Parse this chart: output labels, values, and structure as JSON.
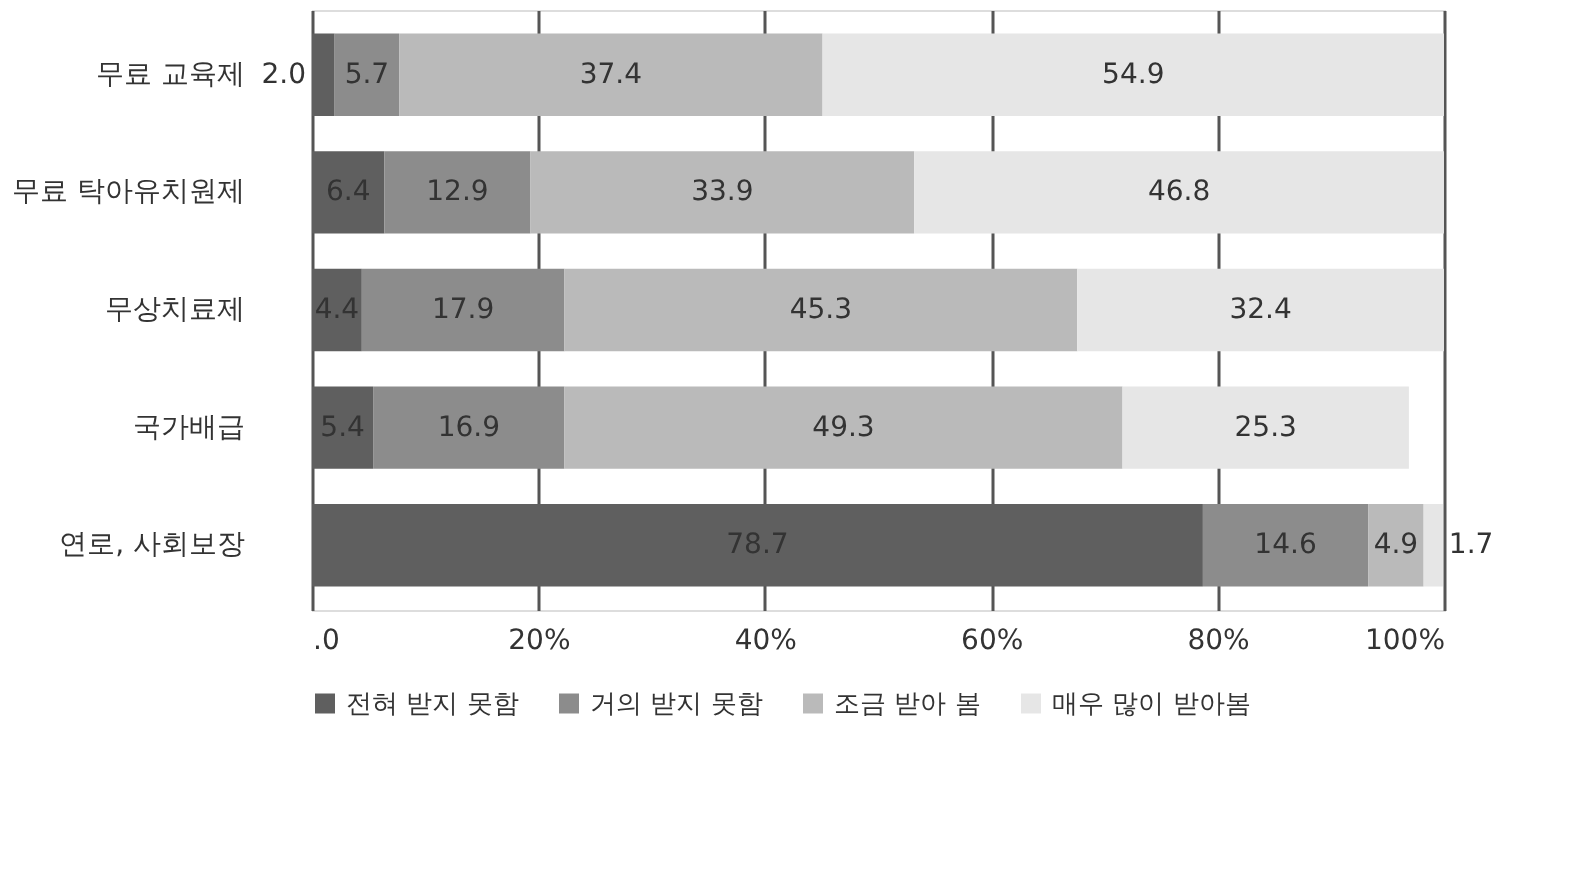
{
  "chart_data": {
    "type": "bar",
    "orientation": "horizontal",
    "stacked": true,
    "grid": "x",
    "legend": "bottom",
    "categories": [
      "무료 교육제",
      "무료 탁아유치원제",
      "무상치료제",
      "국가배급",
      "연로, 사회보장"
    ],
    "series": [
      {
        "name": "전혀 받지 못함",
        "color": "#5f5f5f",
        "values": [
          2.0,
          6.4,
          4.4,
          5.4,
          78.7
        ],
        "value_labels": [
          "2.0",
          "6.4",
          "4.4",
          "5.4",
          "78.7"
        ]
      },
      {
        "name": "거의 받지 못함",
        "color": "#8c8c8c",
        "values": [
          5.7,
          12.9,
          17.9,
          16.9,
          14.6
        ],
        "value_labels": [
          "5.7",
          "12.9",
          "17.9",
          "16.9",
          "14.6"
        ]
      },
      {
        "name": "조금 받아 봄",
        "color": "#bababa",
        "values": [
          37.4,
          33.9,
          45.3,
          49.3,
          4.9
        ],
        "value_labels": [
          "37.4",
          "33.9",
          "45.3",
          "49.3",
          "4.9"
        ]
      },
      {
        "name": "매우 많이 받아봄",
        "color": "#e6e6e6",
        "values": [
          54.9,
          46.8,
          32.4,
          25.3,
          1.7
        ],
        "value_labels": [
          "54.9",
          "46.8",
          "32.4",
          "25.3",
          "1.7"
        ]
      }
    ],
    "xlim": [
      0,
      100
    ],
    "xticks": [
      {
        "value": 0,
        "label": ".0"
      },
      {
        "value": 20,
        "label": "20%"
      },
      {
        "value": 40,
        "label": "40%"
      },
      {
        "value": 60,
        "label": "60%"
      },
      {
        "value": 80,
        "label": "80%"
      },
      {
        "value": 100,
        "label": "100%"
      }
    ]
  }
}
